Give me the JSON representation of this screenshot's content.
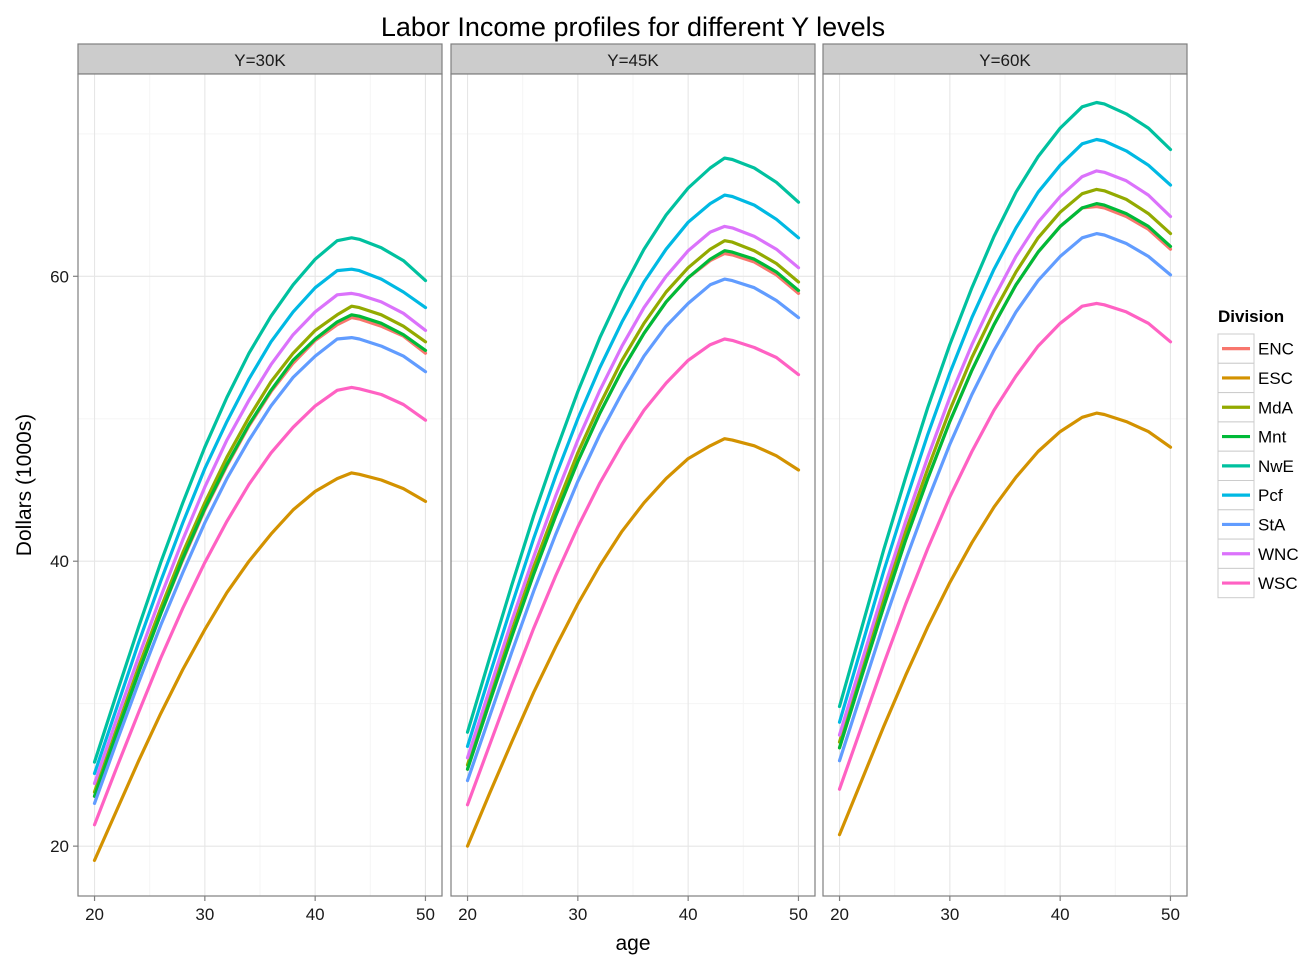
{
  "chart_data": {
    "type": "line",
    "title": "Labor Income profiles for different Y levels",
    "xlabel": "age",
    "ylabel": "Dollars (1000s)",
    "xlim": [
      18.5,
      51.5
    ],
    "ylim": [
      16.5,
      74.2
    ],
    "xticks": [
      20,
      30,
      40,
      50
    ],
    "yticks": [
      20,
      40,
      60
    ],
    "grid": true,
    "legend": {
      "title": "Division",
      "position": "right"
    },
    "x": [
      20,
      22,
      24,
      26,
      28,
      30,
      32,
      34,
      36,
      38,
      40,
      42,
      43.3,
      44,
      46,
      48,
      50
    ],
    "panels": [
      {
        "label": "Y=30K",
        "series": [
          {
            "name": "ENC",
            "color": "#F8766D",
            "values": [
              23.5,
              27.9,
              32.2,
              36.3,
              40.1,
              43.6,
              46.7,
              49.5,
              51.9,
              53.9,
              55.5,
              56.6,
              57.1,
              57.0,
              56.5,
              55.8,
              54.6
            ]
          },
          {
            "name": "ESC",
            "color": "#D39200",
            "values": [
              19.0,
              22.5,
              26.0,
              29.3,
              32.4,
              35.2,
              37.8,
              40.0,
              41.9,
              43.6,
              44.9,
              45.8,
              46.2,
              46.1,
              45.7,
              45.1,
              44.2
            ]
          },
          {
            "name": "MdA",
            "color": "#93AA00",
            "values": [
              23.8,
              28.2,
              32.6,
              36.7,
              40.6,
              44.1,
              47.3,
              50.1,
              52.6,
              54.6,
              56.2,
              57.3,
              57.9,
              57.8,
              57.3,
              56.5,
              55.4
            ]
          },
          {
            "name": "Mnt",
            "color": "#00BA38",
            "values": [
              23.5,
              27.9,
              32.2,
              36.3,
              40.2,
              43.7,
              46.8,
              49.6,
              52.0,
              54.1,
              55.6,
              56.8,
              57.3,
              57.2,
              56.7,
              55.9,
              54.8
            ]
          },
          {
            "name": "NwE",
            "color": "#00C19F",
            "values": [
              25.9,
              30.7,
              35.4,
              39.9,
              44.1,
              48.0,
              51.5,
              54.6,
              57.2,
              59.4,
              61.2,
              62.5,
              62.7,
              62.6,
              62.0,
              61.1,
              59.7
            ]
          },
          {
            "name": "Pcf",
            "color": "#00B9E3",
            "values": [
              25.1,
              29.7,
              34.3,
              38.6,
              42.7,
              46.5,
              49.8,
              52.8,
              55.4,
              57.5,
              59.2,
              60.4,
              60.5,
              60.4,
              59.8,
              58.9,
              57.8
            ]
          },
          {
            "name": "StA",
            "color": "#619CFF",
            "values": [
              23.0,
              27.3,
              31.5,
              35.5,
              39.2,
              42.7,
              45.8,
              48.5,
              50.9,
              52.9,
              54.4,
              55.6,
              55.7,
              55.6,
              55.1,
              54.4,
              53.3
            ]
          },
          {
            "name": "WNC",
            "color": "#DB72FB",
            "values": [
              24.4,
              28.9,
              33.3,
              37.5,
              41.5,
              45.2,
              48.5,
              51.3,
              53.8,
              55.9,
              57.5,
              58.7,
              58.8,
              58.7,
              58.2,
              57.4,
              56.2
            ]
          },
          {
            "name": "WSC",
            "color": "#FF61C3",
            "values": [
              21.5,
              25.5,
              29.4,
              33.2,
              36.7,
              39.9,
              42.8,
              45.4,
              47.6,
              49.4,
              50.9,
              52.0,
              52.2,
              52.1,
              51.7,
              51.0,
              49.9
            ]
          }
        ]
      },
      {
        "label": "Y=45K",
        "series": [
          {
            "name": "ENC",
            "color": "#F8766D",
            "values": [
              25.4,
              30.1,
              34.7,
              39.1,
              43.2,
              47.0,
              50.4,
              53.4,
              56.0,
              58.2,
              59.9,
              61.1,
              61.6,
              61.5,
              61.0,
              60.1,
              58.8
            ]
          },
          {
            "name": "ESC",
            "color": "#D39200",
            "values": [
              20.0,
              23.7,
              27.3,
              30.8,
              34.0,
              37.0,
              39.7,
              42.1,
              44.1,
              45.8,
              47.2,
              48.1,
              48.6,
              48.5,
              48.1,
              47.4,
              46.4
            ]
          },
          {
            "name": "MdA",
            "color": "#93AA00",
            "values": [
              25.7,
              30.5,
              35.1,
              39.6,
              43.7,
              47.6,
              51.0,
              54.1,
              56.7,
              58.9,
              60.6,
              61.9,
              62.5,
              62.4,
              61.8,
              60.9,
              59.6
            ]
          },
          {
            "name": "Mnt",
            "color": "#00BA38",
            "values": [
              25.4,
              30.1,
              34.7,
              39.1,
              43.2,
              47.0,
              50.4,
              53.4,
              56.0,
              58.2,
              59.9,
              61.2,
              61.8,
              61.7,
              61.2,
              60.3,
              59.0
            ]
          },
          {
            "name": "NwE",
            "color": "#00C19F",
            "values": [
              28.0,
              33.2,
              38.3,
              43.2,
              47.7,
              51.9,
              55.7,
              59.0,
              61.9,
              64.3,
              66.2,
              67.6,
              68.3,
              68.2,
              67.6,
              66.6,
              65.2
            ]
          },
          {
            "name": "Pcf",
            "color": "#00B9E3",
            "values": [
              27.0,
              32.0,
              36.9,
              41.6,
              46.0,
              50.0,
              53.6,
              56.8,
              59.6,
              61.9,
              63.8,
              65.1,
              65.7,
              65.6,
              65.0,
              64.0,
              62.7
            ]
          },
          {
            "name": "StA",
            "color": "#619CFF",
            "values": [
              24.6,
              29.1,
              33.6,
              37.9,
              41.9,
              45.6,
              48.9,
              51.8,
              54.4,
              56.5,
              58.1,
              59.4,
              59.8,
              59.7,
              59.2,
              58.3,
              57.1
            ]
          },
          {
            "name": "WNC",
            "color": "#DB72FB",
            "values": [
              26.2,
              31.0,
              35.8,
              40.3,
              44.6,
              48.5,
              52.0,
              55.1,
              57.8,
              60.0,
              61.8,
              63.1,
              63.5,
              63.4,
              62.8,
              61.9,
              60.6
            ]
          },
          {
            "name": "WSC",
            "color": "#FF61C3",
            "values": [
              22.9,
              27.1,
              31.3,
              35.3,
              39.0,
              42.4,
              45.5,
              48.2,
              50.6,
              52.5,
              54.1,
              55.2,
              55.6,
              55.5,
              55.0,
              54.3,
              53.1
            ]
          }
        ]
      },
      {
        "label": "Y=60K",
        "series": [
          {
            "name": "ENC",
            "color": "#F8766D",
            "values": [
              26.9,
              31.9,
              36.8,
              41.5,
              45.8,
              49.8,
              53.4,
              56.6,
              59.4,
              61.7,
              63.5,
              64.8,
              64.9,
              64.8,
              64.2,
              63.3,
              61.9
            ]
          },
          {
            "name": "ESC",
            "color": "#D39200",
            "values": [
              20.8,
              24.6,
              28.4,
              32.0,
              35.4,
              38.5,
              41.3,
              43.8,
              45.9,
              47.7,
              49.1,
              50.1,
              50.4,
              50.3,
              49.8,
              49.1,
              48.0
            ]
          },
          {
            "name": "MdA",
            "color": "#93AA00",
            "values": [
              27.3,
              32.4,
              37.4,
              42.1,
              46.5,
              50.6,
              54.3,
              57.5,
              60.3,
              62.7,
              64.5,
              65.8,
              66.1,
              66.0,
              65.4,
              64.4,
              63.0
            ]
          },
          {
            "name": "Mnt",
            "color": "#00BA38",
            "values": [
              26.9,
              31.9,
              36.8,
              41.5,
              45.8,
              49.8,
              53.4,
              56.6,
              59.4,
              61.7,
              63.5,
              64.8,
              65.1,
              65.0,
              64.4,
              63.5,
              62.1
            ]
          },
          {
            "name": "NwE",
            "color": "#00C19F",
            "values": [
              29.8,
              35.3,
              40.8,
              45.9,
              50.8,
              55.2,
              59.2,
              62.8,
              65.9,
              68.4,
              70.4,
              71.9,
              72.2,
              72.1,
              71.4,
              70.4,
              68.9
            ]
          },
          {
            "name": "Pcf",
            "color": "#00B9E3",
            "values": [
              28.7,
              34.0,
              39.3,
              44.2,
              48.9,
              53.2,
              57.1,
              60.5,
              63.4,
              65.9,
              67.8,
              69.3,
              69.6,
              69.5,
              68.8,
              67.8,
              66.4
            ]
          },
          {
            "name": "StA",
            "color": "#619CFF",
            "values": [
              26.0,
              30.8,
              35.6,
              40.1,
              44.3,
              48.2,
              51.7,
              54.8,
              57.5,
              59.7,
              61.4,
              62.7,
              63.0,
              62.9,
              62.3,
              61.4,
              60.1
            ]
          },
          {
            "name": "WNC",
            "color": "#DB72FB",
            "values": [
              27.8,
              32.9,
              38.0,
              42.8,
              47.3,
              51.5,
              55.2,
              58.5,
              61.4,
              63.8,
              65.6,
              67.0,
              67.4,
              67.3,
              66.7,
              65.7,
              64.2
            ]
          },
          {
            "name": "WSC",
            "color": "#FF61C3",
            "values": [
              24.0,
              28.4,
              32.8,
              37.0,
              40.9,
              44.5,
              47.7,
              50.6,
              53.0,
              55.1,
              56.7,
              57.9,
              58.1,
              58.0,
              57.5,
              56.7,
              55.4
            ]
          }
        ]
      }
    ]
  }
}
